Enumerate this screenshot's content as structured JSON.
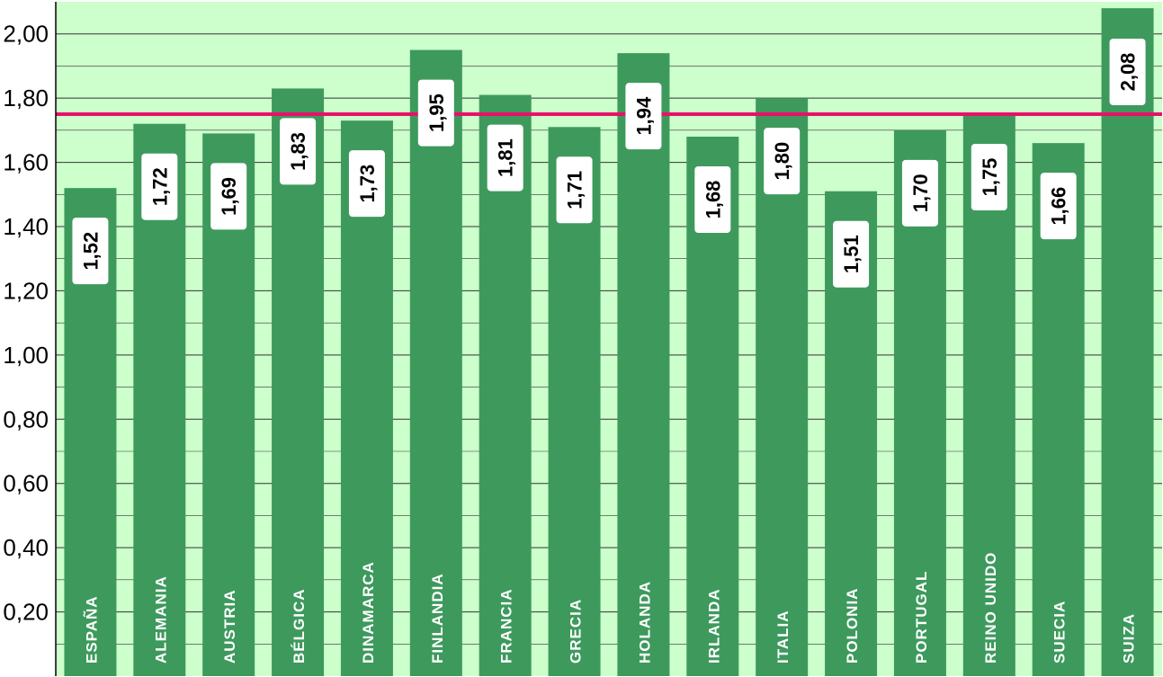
{
  "chart_data": {
    "type": "bar",
    "categories": [
      "ESPAÑA",
      "ALEMANIA",
      "AUSTRIA",
      "BÉLGICA",
      "DINAMARCA",
      "FINLANDIA",
      "FRANCIA",
      "GRECIA",
      "HOLANDA",
      "IRLANDA",
      "ITALIA",
      "POLONIA",
      "PORTUGAL",
      "REINO UNIDO",
      "SUECIA",
      "SUIZA"
    ],
    "values": [
      1.52,
      1.72,
      1.69,
      1.83,
      1.73,
      1.95,
      1.81,
      1.71,
      1.94,
      1.68,
      1.8,
      1.51,
      1.7,
      1.75,
      1.66,
      2.08
    ],
    "value_labels": [
      "1,52",
      "1,72",
      "1,69",
      "1,83",
      "1,73",
      "1,95",
      "1,81",
      "1,71",
      "1,94",
      "1,68",
      "1,80",
      "1,51",
      "1,70",
      "1,75",
      "1,66",
      "2,08"
    ],
    "y_ticks": [
      0.2,
      0.4,
      0.6,
      0.8,
      1.0,
      1.2,
      1.4,
      1.6,
      1.8,
      2.0
    ],
    "y_tick_labels": [
      "0,20",
      "0,40",
      "0,60",
      "0,80",
      "1,00",
      "1,20",
      "1,40",
      "1,60",
      "1,80",
      "2,00"
    ],
    "ylim": [
      0,
      2.1
    ],
    "reference_line": 1.75,
    "grid": true,
    "colors": {
      "plot_background": "#ccffcc",
      "bar": "#3d9a5c",
      "reference_line": "#e8106a",
      "gridline": "#333333",
      "value_box": "#ffffff"
    }
  }
}
